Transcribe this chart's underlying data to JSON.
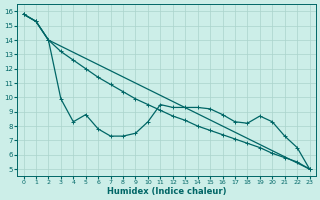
{
  "xlabel": "Humidex (Indice chaleur)",
  "background_color": "#cceee8",
  "grid_color": "#aad4cc",
  "line_color": "#006666",
  "xlim": [
    -0.5,
    23.5
  ],
  "ylim": [
    4.5,
    16.5
  ],
  "xticks": [
    0,
    1,
    2,
    3,
    4,
    5,
    6,
    7,
    8,
    9,
    10,
    11,
    12,
    13,
    14,
    15,
    16,
    17,
    18,
    19,
    20,
    21,
    22,
    23
  ],
  "yticks": [
    5,
    6,
    7,
    8,
    9,
    10,
    11,
    12,
    13,
    14,
    15,
    16
  ],
  "series1_x": [
    0,
    1,
    2,
    23
  ],
  "series1_y": [
    15.8,
    15.3,
    14.0,
    5.0
  ],
  "series2_x": [
    0,
    1,
    2,
    3,
    4,
    5,
    6,
    7,
    8,
    9,
    10,
    11,
    12,
    13,
    14,
    15,
    16,
    17,
    18,
    19,
    20,
    21,
    22,
    23
  ],
  "series2_y": [
    15.8,
    15.3,
    14.0,
    13.2,
    12.6,
    12.0,
    11.4,
    10.9,
    10.4,
    9.9,
    9.5,
    9.1,
    8.7,
    8.4,
    8.0,
    7.7,
    7.4,
    7.1,
    6.8,
    6.5,
    6.1,
    5.8,
    5.5,
    5.0
  ],
  "series3_x": [
    0,
    1,
    2,
    3,
    4,
    5,
    6,
    7,
    8,
    9,
    10,
    11,
    12,
    13,
    14,
    15,
    16,
    17,
    18,
    19,
    20,
    21,
    22,
    23
  ],
  "series3_y": [
    15.8,
    15.3,
    14.0,
    9.9,
    8.3,
    8.8,
    7.8,
    7.3,
    7.3,
    7.5,
    8.3,
    9.5,
    9.3,
    9.3,
    9.3,
    9.2,
    8.8,
    8.3,
    8.2,
    8.7,
    8.3,
    7.3,
    6.5,
    5.0
  ]
}
